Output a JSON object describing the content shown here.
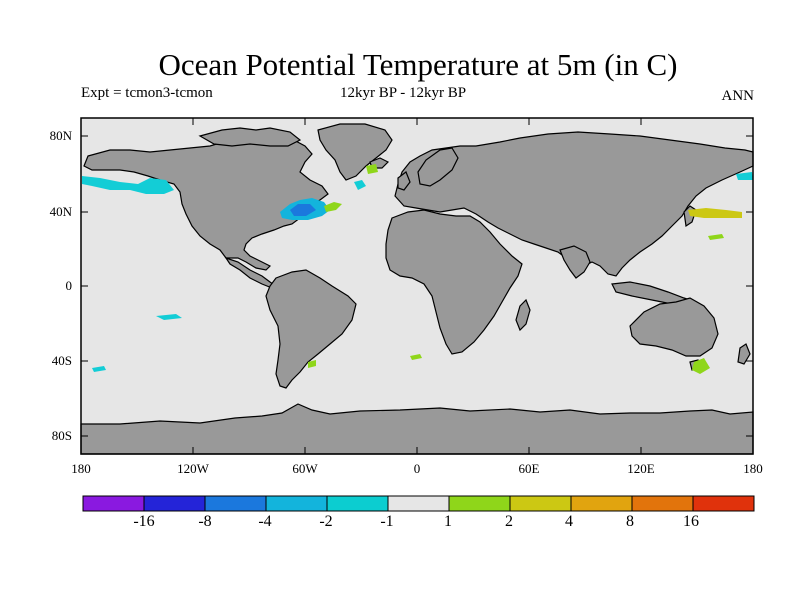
{
  "title": "Ocean Potential Temperature at 5m (in C)",
  "expt_label": "Expt = tcmon3-tcmon",
  "period_label": "12kyr BP - 12kyr BP",
  "season_label": "ANN",
  "lat_ticks": [
    "80N",
    "40N",
    "0",
    "40S",
    "80S"
  ],
  "lon_ticks": [
    "180",
    "120W",
    "60W",
    "0",
    "60E",
    "120E",
    "180"
  ],
  "colors": {
    "ocean": "#e6e6e6",
    "land": "#999999",
    "coast": "#000000"
  },
  "colorbar": {
    "labels": [
      "-16",
      "-8",
      "-4",
      "-2",
      "-1",
      "1",
      "2",
      "4",
      "8",
      "16"
    ],
    "colors": [
      "#8a19e0",
      "#2424d8",
      "#1b78dd",
      "#13b4dc",
      "#0ccdd0",
      "#e6e6e6",
      "#8fd61a",
      "#ccc813",
      "#e1a40f",
      "#e2740c",
      "#e0320c"
    ]
  }
}
